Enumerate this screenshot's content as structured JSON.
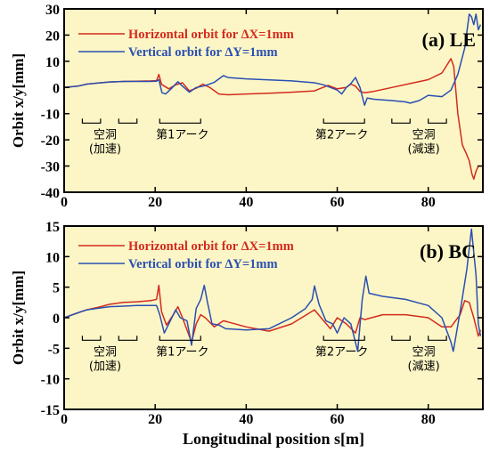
{
  "chart_data": [
    {
      "type": "line",
      "panel_label": "(a) LE",
      "ylabel": "Orbit x/y[mm]",
      "xlim": [
        0,
        92
      ],
      "ylim": [
        -40,
        30
      ],
      "x_ticks": [
        "0",
        "20",
        "40",
        "60",
        "80"
      ],
      "y_ticks": [
        "30",
        "20",
        "10",
        "0",
        "-10",
        "-20",
        "-30",
        "-40"
      ],
      "background": "#fcf6c6",
      "grid": false,
      "legend_position": "top-left",
      "series": [
        {
          "name": "Horizontal orbit for ΔX=1mm",
          "color": "#d42a1e",
          "points": [
            [
              0,
              0
            ],
            [
              3,
              0.5
            ],
            [
              5,
              1.3
            ],
            [
              8,
              1.8
            ],
            [
              10,
              2.1
            ],
            [
              13,
              2.3
            ],
            [
              16,
              2.4
            ],
            [
              19,
              2.5
            ],
            [
              20.3,
              2.6
            ],
            [
              20.8,
              5
            ],
            [
              21.4,
              1.2
            ],
            [
              23,
              -0.5
            ],
            [
              24.5,
              1
            ],
            [
              26,
              1.8
            ],
            [
              27.5,
              -1.3
            ],
            [
              29,
              -0.3
            ],
            [
              30.5,
              1.3
            ],
            [
              32,
              0
            ],
            [
              34,
              -2.5
            ],
            [
              36,
              -2.8
            ],
            [
              40,
              -2.5
            ],
            [
              45,
              -2.2
            ],
            [
              50,
              -1.8
            ],
            [
              55,
              -1.3
            ],
            [
              58,
              0.8
            ],
            [
              60,
              -0.5
            ],
            [
              62,
              0
            ],
            [
              63,
              1.3
            ],
            [
              64,
              0.5
            ],
            [
              65,
              -1.5
            ],
            [
              66,
              -2
            ],
            [
              68,
              -1.5
            ],
            [
              72,
              0
            ],
            [
              76,
              1.5
            ],
            [
              80,
              3
            ],
            [
              83,
              5.5
            ],
            [
              85,
              11
            ],
            [
              85.6,
              8
            ],
            [
              86.5,
              -10
            ],
            [
              87.5,
              -22
            ],
            [
              88.3,
              -25
            ],
            [
              89,
              -28
            ],
            [
              89.6,
              -33
            ],
            [
              90,
              -35
            ],
            [
              90.5,
              -32
            ],
            [
              91,
              -30
            ]
          ]
        },
        {
          "name": "Vertical orbit for ΔY=1mm",
          "color": "#2a4fb2",
          "points": [
            [
              0,
              0
            ],
            [
              3,
              0.5
            ],
            [
              5,
              1.3
            ],
            [
              8,
              1.8
            ],
            [
              10,
              2.1
            ],
            [
              13,
              2.3
            ],
            [
              16,
              2.3
            ],
            [
              19,
              2.3
            ],
            [
              20.3,
              2.4
            ],
            [
              20.8,
              3
            ],
            [
              21.5,
              -2
            ],
            [
              22.3,
              -2.5
            ],
            [
              23.5,
              -0.5
            ],
            [
              25,
              2.2
            ],
            [
              26,
              0.5
            ],
            [
              27.5,
              -1.8
            ],
            [
              29,
              0
            ],
            [
              30.5,
              0.5
            ],
            [
              31.5,
              1
            ],
            [
              33,
              2
            ],
            [
              35,
              4.5
            ],
            [
              36,
              3.8
            ],
            [
              40,
              3.3
            ],
            [
              50,
              2.5
            ],
            [
              55,
              1.8
            ],
            [
              57,
              1
            ],
            [
              60,
              -1
            ],
            [
              61,
              -2.5
            ],
            [
              62,
              0
            ],
            [
              63,
              1.5
            ],
            [
              64,
              3.8
            ],
            [
              65,
              0
            ],
            [
              66,
              -6.8
            ],
            [
              66.6,
              -4
            ],
            [
              68,
              -4.5
            ],
            [
              72,
              -5
            ],
            [
              75,
              -5.5
            ],
            [
              76,
              -6
            ],
            [
              78,
              -5
            ],
            [
              80,
              -3
            ],
            [
              83,
              -3.5
            ],
            [
              85,
              -1
            ],
            [
              86.5,
              5
            ],
            [
              88,
              15
            ],
            [
              89,
              28
            ],
            [
              89.5,
              27
            ],
            [
              90,
              24
            ],
            [
              90.5,
              28
            ],
            [
              91,
              22
            ],
            [
              91.5,
              24
            ]
          ]
        }
      ],
      "annotations": [
        {
          "text": "空洞",
          "sub": "(加速)",
          "x": 9
        },
        {
          "text": "第1アーク",
          "x": 26
        },
        {
          "text": "第2アーク",
          "x": 61
        },
        {
          "text": "空洞",
          "sub": "(減速)",
          "x": 79
        }
      ]
    },
    {
      "type": "line",
      "panel_label": "(b) BC",
      "ylabel": "Orbit x/y[mm]",
      "xlabel": "Longitudinal position s[m]",
      "xlim": [
        0,
        92
      ],
      "ylim": [
        -15,
        15
      ],
      "x_ticks": [
        "0",
        "20",
        "40",
        "60",
        "80"
      ],
      "y_ticks": [
        "15",
        "10",
        "5",
        "0",
        "-5",
        "-10",
        "-15"
      ],
      "background": "#fcf6c6",
      "grid": false,
      "legend_position": "top-left",
      "series": [
        {
          "name": "Horizontal orbit for ΔX=1mm",
          "color": "#d42a1e",
          "points": [
            [
              0,
              0
            ],
            [
              3,
              0.8
            ],
            [
              5,
              1.3
            ],
            [
              8,
              1.8
            ],
            [
              10,
              2.2
            ],
            [
              13,
              2.5
            ],
            [
              16,
              2.6
            ],
            [
              19,
              2.8
            ],
            [
              20.3,
              3
            ],
            [
              20.8,
              5.3
            ],
            [
              21.4,
              1
            ],
            [
              22.5,
              -1.2
            ],
            [
              24,
              0.5
            ],
            [
              25,
              1.8
            ],
            [
              26,
              0
            ],
            [
              27,
              -2
            ],
            [
              28,
              -4
            ],
            [
              29,
              -1
            ],
            [
              30,
              0.5
            ],
            [
              31,
              0
            ],
            [
              33,
              -1.5
            ],
            [
              35,
              -0.5
            ],
            [
              40,
              -1.5
            ],
            [
              45,
              -2.2
            ],
            [
              50,
              -1
            ],
            [
              55,
              1.3
            ],
            [
              57,
              -0.5
            ],
            [
              58.5,
              -1.8
            ],
            [
              60,
              0
            ],
            [
              62,
              -1
            ],
            [
              64,
              -2.5
            ],
            [
              65,
              0
            ],
            [
              66,
              -0.3
            ],
            [
              70,
              0.5
            ],
            [
              75,
              0.5
            ],
            [
              80,
              0
            ],
            [
              83,
              -1.5
            ],
            [
              85,
              -1.5
            ],
            [
              87,
              0.5
            ],
            [
              88,
              2.8
            ],
            [
              89,
              2.5
            ],
            [
              90,
              0
            ],
            [
              91,
              -3
            ],
            [
              91.5,
              -2
            ]
          ]
        },
        {
          "name": "Vertical orbit for ΔY=1mm",
          "color": "#2a4fb2",
          "points": [
            [
              0,
              0
            ],
            [
              3,
              0.8
            ],
            [
              5,
              1.3
            ],
            [
              8,
              1.6
            ],
            [
              10,
              1.8
            ],
            [
              13,
              1.9
            ],
            [
              16,
              2
            ],
            [
              19,
              2
            ],
            [
              20.3,
              2
            ],
            [
              21,
              0.5
            ],
            [
              22,
              -2.5
            ],
            [
              23,
              -1
            ],
            [
              24.5,
              1.3
            ],
            [
              25.5,
              0
            ],
            [
              27,
              -0.5
            ],
            [
              28,
              -4.5
            ],
            [
              29,
              1.5
            ],
            [
              30,
              3
            ],
            [
              30.8,
              5.3
            ],
            [
              31.5,
              2.5
            ],
            [
              32.5,
              -1
            ],
            [
              34,
              -1.2
            ],
            [
              35.5,
              -1.8
            ],
            [
              40,
              -2
            ],
            [
              45,
              -1.8
            ],
            [
              50,
              0
            ],
            [
              53,
              1.5
            ],
            [
              54.5,
              3
            ],
            [
              55,
              5.2
            ],
            [
              56,
              2.2
            ],
            [
              57.5,
              -0.5
            ],
            [
              59,
              -1
            ],
            [
              60,
              -2.5
            ],
            [
              61.5,
              0
            ],
            [
              63,
              -1
            ],
            [
              64.5,
              -5.5
            ],
            [
              65.5,
              3
            ],
            [
              66.3,
              6.8
            ],
            [
              67,
              4
            ],
            [
              70,
              3.5
            ],
            [
              75,
              3
            ],
            [
              80,
              2
            ],
            [
              83,
              0
            ],
            [
              85,
              -4
            ],
            [
              85.5,
              -5.5
            ],
            [
              87,
              1
            ],
            [
              88.5,
              8
            ],
            [
              89.5,
              14.5
            ],
            [
              90.5,
              7
            ],
            [
              91,
              -1
            ],
            [
              91.5,
              -3
            ]
          ]
        }
      ],
      "annotations": [
        {
          "text": "空洞",
          "sub": "(加速)",
          "x": 9
        },
        {
          "text": "第1アーク",
          "x": 26
        },
        {
          "text": "第2アーク",
          "x": 61
        },
        {
          "text": "空洞",
          "sub": "(減速)",
          "x": 79
        }
      ]
    }
  ]
}
